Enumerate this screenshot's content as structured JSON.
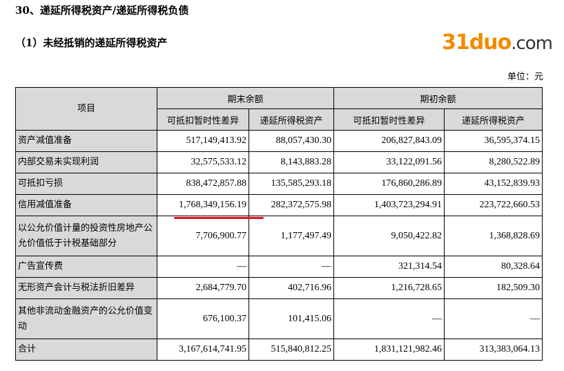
{
  "section_title": "30、递延所得税资产/递延所得税负债",
  "sub_title": "（1）未经抵销的递延所得税资产",
  "unit": "单位：元",
  "table": {
    "header": {
      "item": "项目",
      "end": "期末余额",
      "begin": "期初余额",
      "col_diff": "可抵扣暂时性差异",
      "col_asset": "递延所得税资产"
    },
    "rows": [
      {
        "label": "资产减值准备",
        "v": [
          "517,149,413.92",
          "88,057,430.30",
          "206,827,843.09",
          "36,595,374.15"
        ]
      },
      {
        "label": "内部交易未实现利润",
        "v": [
          "32,575,533.12",
          "8,143,883.28",
          "33,122,091.56",
          "8,280,522.89"
        ]
      },
      {
        "label": "可抵扣亏损",
        "v": [
          "838,472,857.88",
          "135,585,293.18",
          "176,860,286.89",
          "43,152,839.93"
        ]
      },
      {
        "label": "信用减值准备",
        "v": [
          "1,768,349,156.19",
          "282,372,575.98",
          "1,403,723,294.91",
          "223,722,660.53"
        ]
      },
      {
        "label": "以公允价值计量的投资性房地产公允价值低于计税基础部分",
        "v": [
          "7,706,900.77",
          "1,177,497.49",
          "9,050,422.82",
          "1,368,828.69"
        ]
      },
      {
        "label": "广告宣传费",
        "v": [
          "—",
          "—",
          "321,314.54",
          "80,328.64"
        ]
      },
      {
        "label": "无形资产会计与税法折旧差异",
        "v": [
          "2,684,779.70",
          "402,716.96",
          "1,216,728.65",
          "182,509.30"
        ]
      },
      {
        "label": "其他非流动金融资产的公允价值变动",
        "v": [
          "676,100.37",
          "101,415.06",
          "—",
          "—"
        ]
      },
      {
        "label": "合计",
        "v": [
          "3,167,614,741.95",
          "515,840,812.25",
          "1,831,121,982.46",
          "313,383,064.13"
        ]
      }
    ]
  },
  "watermark": {
    "main": "31duo",
    "suffix": ".com"
  }
}
